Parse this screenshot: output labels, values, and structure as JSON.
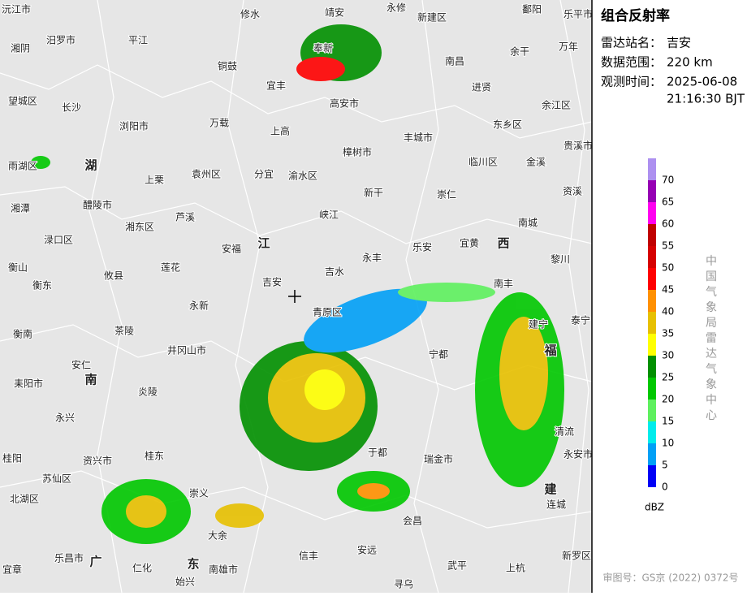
{
  "panel": {
    "title": "组合反射率",
    "station_label": "雷达站名：",
    "station": "吉安",
    "range_label": "数据范围：",
    "range": "220 km",
    "time_label": "观测时间：",
    "date": "2025-06-08",
    "time": "21:16:30 BJT",
    "unit": "dBZ",
    "agency": "中国气象局雷达气象中心",
    "approval": "审图号：GS京 (2022) 0372号"
  },
  "legend": [
    {
      "value": 0,
      "color": "#0000f6"
    },
    {
      "value": 5,
      "color": "#01a0f6"
    },
    {
      "value": 10,
      "color": "#00ecec"
    },
    {
      "value": 15,
      "color": "#5ef05e"
    },
    {
      "value": 20,
      "color": "#00c800"
    },
    {
      "value": 25,
      "color": "#019000"
    },
    {
      "value": 30,
      "color": "#ffff00"
    },
    {
      "value": 35,
      "color": "#e7c000"
    },
    {
      "value": 40,
      "color": "#ff9000"
    },
    {
      "value": 45,
      "color": "#ff0000"
    },
    {
      "value": 50,
      "color": "#d60000"
    },
    {
      "value": 55,
      "color": "#c00000"
    },
    {
      "value": 60,
      "color": "#ff00f0"
    },
    {
      "value": 65,
      "color": "#9600b4"
    },
    {
      "value": 70,
      "color": "#ad90f0"
    }
  ],
  "places": [
    "沅江市",
    "修水",
    "靖安",
    "永修",
    "新建区",
    "鄱阳",
    "乐平市",
    "汨罗市",
    "平江",
    "湘阴",
    "铜鼓",
    "奉新",
    "南昌",
    "余干",
    "万年",
    "宜丰",
    "进贤",
    "望城区",
    "长沙",
    "浏阳市",
    "万载",
    "高安市",
    "东乡区",
    "余江区",
    "上高",
    "丰城市",
    "樟树市",
    "贵溪市",
    "临川区",
    "金溪",
    "湖",
    "雨湖区",
    "上栗",
    "袁州区",
    "分宜",
    "渝水区",
    "新干",
    "崇仁",
    "资溪",
    "湘潭",
    "醴陵市",
    "峡江",
    "芦溪",
    "湘东区",
    "南城",
    "渌口区",
    "安福",
    "江",
    "乐安",
    "宜黄",
    "西",
    "永丰",
    "衡山",
    "莲花",
    "黎川",
    "攸县",
    "衡东",
    "吉安",
    "吉水",
    "南丰",
    "永新",
    "青原区",
    "泰宁",
    "衡南",
    "茶陵",
    "井冈山市",
    "宁都",
    "建宁",
    "安仁",
    "福",
    "南",
    "耒阳市",
    "炎陵",
    "永兴",
    "清流",
    "桂东",
    "于都",
    "瑞金市",
    "资兴市",
    "桂阳",
    "苏仙区",
    "北湖区",
    "崇义",
    "建",
    "连城",
    "会昌",
    "大余",
    "信丰",
    "安远",
    "乐昌市",
    "广",
    "仁化",
    "东",
    "宜章",
    "南雄市",
    "武平",
    "上杭",
    "新罗区",
    "始兴",
    "寻乌",
    "永安市"
  ]
}
